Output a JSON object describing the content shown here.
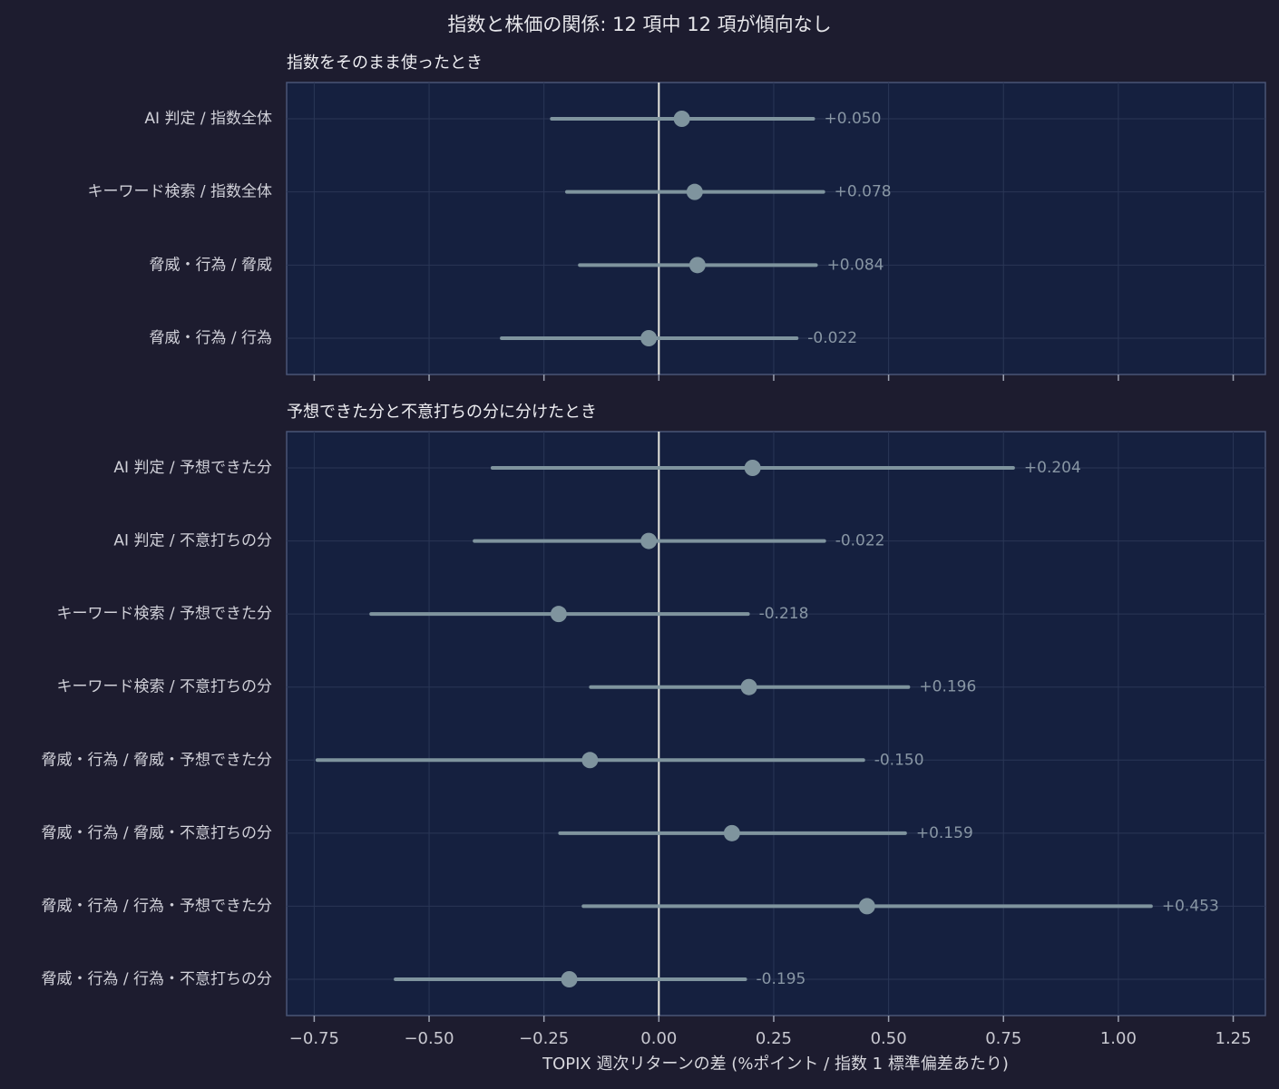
{
  "chart_data": {
    "type": "forest",
    "title": "指数と株価の関係: 12 項中 12 項が傾向なし",
    "xlabel": "TOPIX 週次リターンの差 (%ポイント / 指数 1 標準偏差あたり)",
    "xlim": [
      -0.81,
      1.32
    ],
    "xticks": [
      {
        "value": -0.75,
        "label": "−0.75"
      },
      {
        "value": -0.5,
        "label": "−0.50"
      },
      {
        "value": -0.25,
        "label": "−0.25"
      },
      {
        "value": 0,
        "label": "0.00"
      },
      {
        "value": 0.25,
        "label": "0.25"
      },
      {
        "value": 0.5,
        "label": "0.50"
      },
      {
        "value": 0.75,
        "label": "0.75"
      },
      {
        "value": 1,
        "label": "1.00"
      },
      {
        "value": 1.25,
        "label": "1.25"
      }
    ],
    "grid": true,
    "color": "#7f949e",
    "panels": [
      {
        "subtitle": "指数をそのまま使ったとき",
        "categories": [
          "AI 判定 / 指数全体",
          "キーワード検索 / 指数全体",
          "脅威・行為 / 脅威",
          "脅威・行為 / 行為"
        ],
        "values": [
          0.05,
          0.078,
          0.084,
          -0.022
        ],
        "value_labels": [
          "+0.050",
          "+0.078",
          "+0.084",
          "-0.022"
        ],
        "lower": [
          -0.233,
          -0.2,
          -0.172,
          -0.342
        ],
        "upper": [
          0.336,
          0.358,
          0.342,
          0.3
        ]
      },
      {
        "subtitle": "予想できた分と不意打ちの分に分けたとき",
        "categories": [
          "AI 判定 / 予想できた分",
          "AI 判定 / 不意打ちの分",
          "キーワード検索 / 予想できた分",
          "キーワード検索 / 不意打ちの分",
          "脅威・行為 / 脅威・予想できた分",
          "脅威・行為 / 脅威・不意打ちの分",
          "脅威・行為 / 行為・予想できた分",
          "脅威・行為 / 行為・不意打ちの分"
        ],
        "values": [
          0.204,
          -0.022,
          -0.218,
          0.196,
          -0.15,
          0.159,
          0.453,
          -0.195
        ],
        "value_labels": [
          "+0.204",
          "-0.022",
          "-0.218",
          "+0.196",
          "-0.150",
          "+0.159",
          "+0.453",
          "-0.195"
        ],
        "lower": [
          -0.362,
          -0.401,
          -0.626,
          -0.148,
          -0.743,
          -0.215,
          -0.164,
          -0.573
        ],
        "upper": [
          0.771,
          0.36,
          0.194,
          0.543,
          0.445,
          0.536,
          1.071,
          0.188
        ]
      }
    ]
  }
}
